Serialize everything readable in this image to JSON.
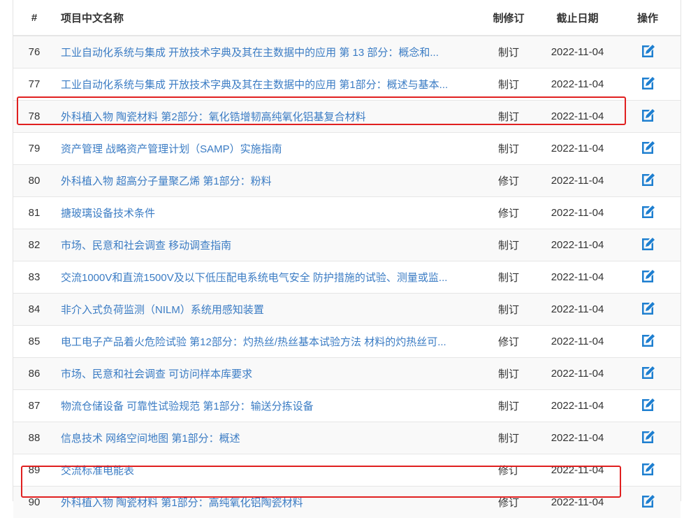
{
  "headers": {
    "no": "#",
    "name": "项目中文名称",
    "type": "制修订",
    "date": "截止日期",
    "op": "操作"
  },
  "accent": "#3b7cc4",
  "highlight_color": "#e02020",
  "rows": [
    {
      "no": "76",
      "name": "工业自动化系统与集成 开放技术字典及其在主数据中的应用 第 13 部分：概念和...",
      "type": "制订",
      "date": "2022-11-04",
      "highlighted": false
    },
    {
      "no": "77",
      "name": "工业自动化系统与集成 开放技术字典及其在主数据中的应用 第1部分：概述与基本...",
      "type": "制订",
      "date": "2022-11-04",
      "highlighted": false
    },
    {
      "no": "78",
      "name": "外科植入物 陶瓷材料 第2部分：氧化锆增韧高纯氧化铝基复合材料",
      "type": "制订",
      "date": "2022-11-04",
      "highlighted": true
    },
    {
      "no": "79",
      "name": "资产管理 战略资产管理计划（SAMP）实施指南",
      "type": "制订",
      "date": "2022-11-04",
      "highlighted": false
    },
    {
      "no": "80",
      "name": "外科植入物 超高分子量聚乙烯 第1部分：粉料",
      "type": "修订",
      "date": "2022-11-04",
      "highlighted": false
    },
    {
      "no": "81",
      "name": "搪玻璃设备技术条件",
      "type": "修订",
      "date": "2022-11-04",
      "highlighted": false
    },
    {
      "no": "82",
      "name": "市场、民意和社会调查 移动调查指南",
      "type": "制订",
      "date": "2022-11-04",
      "highlighted": false
    },
    {
      "no": "83",
      "name": "交流1000V和直流1500V及以下低压配电系统电气安全 防护措施的试验、测量或监...",
      "type": "制订",
      "date": "2022-11-04",
      "highlighted": false
    },
    {
      "no": "84",
      "name": "非介入式负荷监测（NILM）系统用感知装置",
      "type": "制订",
      "date": "2022-11-04",
      "highlighted": false
    },
    {
      "no": "85",
      "name": "电工电子产品着火危险试验 第12部分：灼热丝/热丝基本试验方法 材料的灼热丝可...",
      "type": "修订",
      "date": "2022-11-04",
      "highlighted": false
    },
    {
      "no": "86",
      "name": "市场、民意和社会调查 可访问样本库要求",
      "type": "制订",
      "date": "2022-11-04",
      "highlighted": false
    },
    {
      "no": "87",
      "name": "物流仓储设备 可靠性试验规范 第1部分：输送分拣设备",
      "type": "制订",
      "date": "2022-11-04",
      "highlighted": false
    },
    {
      "no": "88",
      "name": "信息技术 网络空间地图 第1部分：概述",
      "type": "制订",
      "date": "2022-11-04",
      "highlighted": false
    },
    {
      "no": "89",
      "name": "交流标准电能表",
      "type": "修订",
      "date": "2022-11-04",
      "highlighted": false
    },
    {
      "no": "90",
      "name": "外科植入物 陶瓷材料 第1部分：高纯氧化铝陶瓷材料",
      "type": "修订",
      "date": "2022-11-04",
      "highlighted": true
    }
  ],
  "action_icon": "edit-icon"
}
